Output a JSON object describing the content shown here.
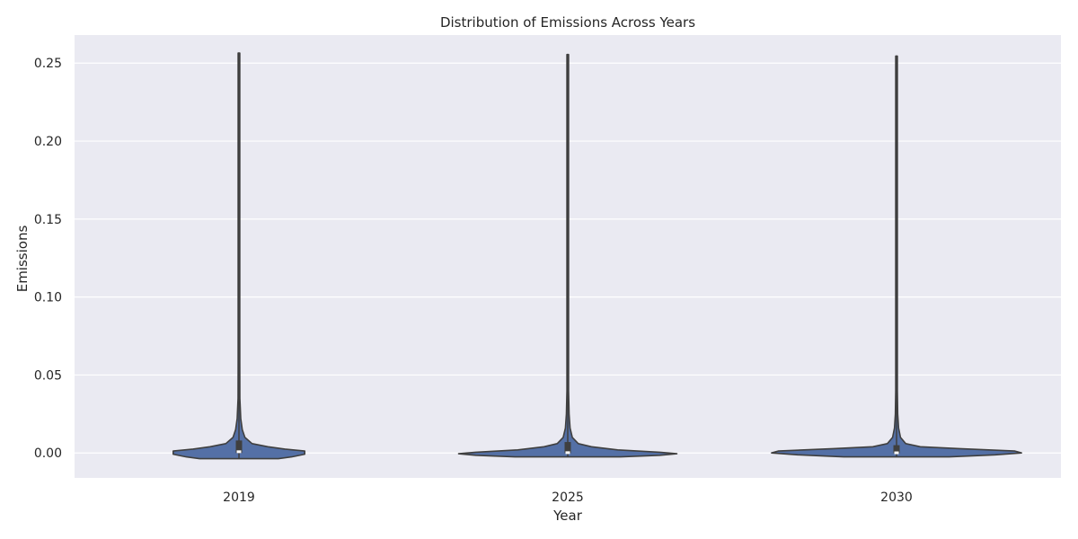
{
  "chart_data": {
    "type": "violin",
    "title": "Distribution of Emissions Across Years",
    "xlabel": "Year",
    "ylabel": "Emissions",
    "categories": [
      "2019",
      "2025",
      "2030"
    ],
    "y_ticks": [
      "0.00",
      "0.05",
      "0.10",
      "0.15",
      "0.20",
      "0.25"
    ],
    "ylim": [
      -0.016,
      0.268
    ],
    "grid": true,
    "colors": {
      "background": "#eaeaf2",
      "grid": "#ffffff",
      "violin_fill": "#5470a6",
      "violin_edge": "#3f3f3f"
    },
    "series": [
      {
        "category": "2019",
        "min": -0.0037,
        "max": 0.2565,
        "q1": 0.0,
        "median": 0.0008,
        "q3": 0.008,
        "density": [
          [
            -0.0037,
            0.3
          ],
          [
            -0.0025,
            0.4
          ],
          [
            -0.0008,
            0.5
          ],
          [
            0.0012,
            0.5
          ],
          [
            0.0025,
            0.35
          ],
          [
            0.004,
            0.22
          ],
          [
            0.006,
            0.1
          ],
          [
            0.01,
            0.045
          ],
          [
            0.015,
            0.025
          ],
          [
            0.022,
            0.014
          ],
          [
            0.035,
            0.007
          ],
          [
            0.06,
            0.004
          ],
          [
            0.1,
            0.0025
          ],
          [
            0.18,
            0.0015
          ],
          [
            0.2565,
            0.0
          ]
        ]
      },
      {
        "category": "2025",
        "min": -0.0025,
        "max": 0.2555,
        "q1": -0.0001,
        "median": 0.0002,
        "q3": 0.007,
        "density": [
          [
            -0.0025,
            0.4
          ],
          [
            -0.0015,
            0.7
          ],
          [
            -0.0005,
            0.83
          ],
          [
            0.0005,
            0.7
          ],
          [
            0.002,
            0.38
          ],
          [
            0.004,
            0.18
          ],
          [
            0.006,
            0.08
          ],
          [
            0.01,
            0.035
          ],
          [
            0.016,
            0.018
          ],
          [
            0.025,
            0.01
          ],
          [
            0.04,
            0.006
          ],
          [
            0.08,
            0.003
          ],
          [
            0.15,
            0.002
          ],
          [
            0.2555,
            0.0
          ]
        ]
      },
      {
        "category": "2030",
        "min": -0.0025,
        "max": 0.2545,
        "q1": -0.0002,
        "median": 0.0001,
        "q3": 0.005,
        "density": [
          [
            -0.0025,
            0.4
          ],
          [
            -0.0012,
            0.75
          ],
          [
            0.0,
            0.95
          ],
          [
            0.0012,
            0.9
          ],
          [
            0.0028,
            0.48
          ],
          [
            0.004,
            0.18
          ],
          [
            0.006,
            0.07
          ],
          [
            0.01,
            0.03
          ],
          [
            0.016,
            0.016
          ],
          [
            0.025,
            0.009
          ],
          [
            0.04,
            0.006
          ],
          [
            0.08,
            0.003
          ],
          [
            0.15,
            0.002
          ],
          [
            0.2545,
            0.0
          ]
        ]
      }
    ]
  }
}
